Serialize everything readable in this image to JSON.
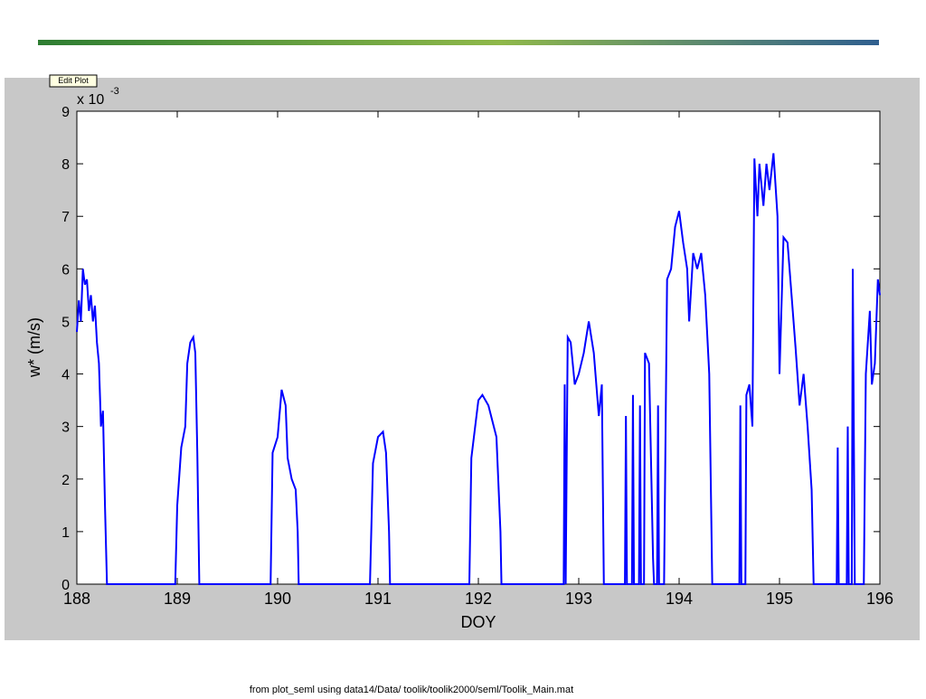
{
  "edit_button": "Edit Plot",
  "caption": "from  plot_seml using data14/Data/ toolik/toolik2000/seml/Toolik_Main.mat",
  "chart_data": {
    "type": "line",
    "y_multiplier": "x 10",
    "y_exponent": "-3",
    "xlabel": "DOY",
    "ylabel": "w* (m/s)",
    "color": "#0000ff",
    "xlim": [
      188,
      196
    ],
    "ylim": [
      0,
      9
    ],
    "xticks": [
      188,
      189,
      190,
      191,
      192,
      193,
      194,
      195,
      196
    ],
    "yticks": [
      0,
      1,
      2,
      3,
      4,
      5,
      6,
      7,
      8,
      9
    ],
    "x": [
      188.0,
      188.02,
      188.04,
      188.06,
      188.08,
      188.1,
      188.12,
      188.14,
      188.16,
      188.18,
      188.2,
      188.22,
      188.24,
      188.26,
      188.28,
      188.3,
      188.98,
      189.0,
      189.04,
      189.08,
      189.1,
      189.13,
      189.16,
      189.18,
      189.2,
      189.22,
      189.93,
      189.95,
      190.0,
      190.04,
      190.08,
      190.1,
      190.14,
      190.18,
      190.2,
      190.21,
      190.92,
      190.95,
      191.0,
      191.05,
      191.08,
      191.11,
      191.12,
      191.91,
      191.93,
      192.0,
      192.04,
      192.1,
      192.18,
      192.22,
      192.23,
      192.85,
      192.86,
      192.87,
      192.89,
      192.92,
      192.96,
      193.0,
      193.05,
      193.1,
      193.15,
      193.2,
      193.23,
      193.25,
      193.46,
      193.47,
      193.48,
      193.53,
      193.54,
      193.55,
      193.6,
      193.61,
      193.62,
      193.65,
      193.66,
      193.7,
      193.74,
      193.75,
      193.78,
      193.79,
      193.8,
      193.85,
      193.88,
      193.92,
      193.96,
      194.0,
      194.04,
      194.08,
      194.1,
      194.14,
      194.18,
      194.22,
      194.26,
      194.3,
      194.33,
      194.6,
      194.61,
      194.62,
      194.66,
      194.67,
      194.7,
      194.73,
      194.75,
      194.78,
      194.8,
      194.84,
      194.87,
      194.9,
      194.94,
      194.98,
      195.0,
      195.04,
      195.08,
      195.12,
      195.16,
      195.2,
      195.24,
      195.28,
      195.32,
      195.34,
      195.57,
      195.58,
      195.59,
      195.67,
      195.68,
      195.69,
      195.72,
      195.73,
      195.75,
      195.84,
      195.86,
      195.9,
      195.92,
      195.95,
      195.98,
      196.0
    ],
    "values": [
      4.8,
      5.4,
      5.0,
      6.0,
      5.7,
      5.8,
      5.2,
      5.5,
      5.0,
      5.3,
      4.6,
      4.2,
      3.0,
      3.3,
      1.5,
      0,
      0,
      1.5,
      2.6,
      3.0,
      4.2,
      4.6,
      4.7,
      4.4,
      2.5,
      0,
      0,
      2.5,
      2.8,
      3.7,
      3.4,
      2.4,
      2.0,
      1.8,
      1.0,
      0,
      0,
      2.3,
      2.8,
      2.9,
      2.5,
      1.0,
      0,
      0,
      2.4,
      3.5,
      3.6,
      3.4,
      2.8,
      1.0,
      0,
      0,
      3.8,
      0,
      4.7,
      4.6,
      3.8,
      4.0,
      4.4,
      5.0,
      4.4,
      3.2,
      3.8,
      0,
      0,
      3.2,
      0,
      0,
      3.6,
      0,
      0,
      3.4,
      0,
      0,
      4.4,
      4.2,
      0.5,
      0,
      0,
      3.4,
      0,
      0,
      5.8,
      6.0,
      6.8,
      7.1,
      6.5,
      6.0,
      5.0,
      6.3,
      6.0,
      6.3,
      5.5,
      4.0,
      0,
      0,
      3.4,
      0,
      0,
      3.6,
      3.8,
      3.0,
      8.1,
      7.0,
      8.0,
      7.2,
      8.0,
      7.5,
      8.2,
      7.0,
      4.0,
      6.6,
      6.5,
      5.5,
      4.5,
      3.4,
      4.0,
      3.0,
      1.8,
      0,
      0,
      2.6,
      0,
      0,
      3.0,
      0,
      0,
      6.0,
      0,
      0,
      4.0,
      5.2,
      3.8,
      4.2,
      5.8,
      5.5
    ]
  }
}
